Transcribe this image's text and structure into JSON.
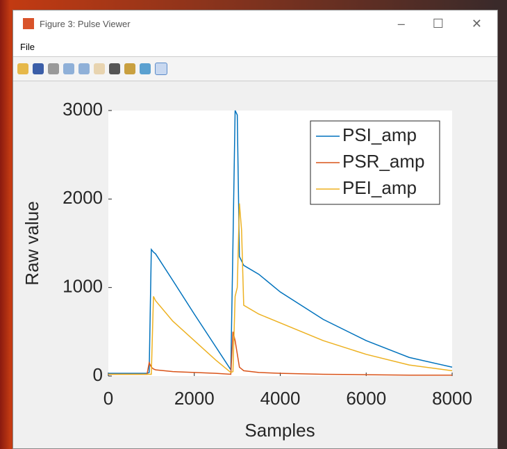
{
  "window": {
    "title": "Figure 3: Pulse Viewer",
    "menu": [
      "File"
    ]
  },
  "chart_data": {
    "type": "line",
    "xlabel": "Samples",
    "ylabel": "Raw value",
    "x": [
      0,
      900,
      950,
      1000,
      1050,
      1100,
      1500,
      2000,
      2500,
      2850,
      2900,
      2950,
      3000,
      3050,
      3100,
      3150,
      3500,
      4000,
      5000,
      6000,
      7000,
      8000
    ],
    "series": [
      {
        "name": "PSI_amp",
        "color": "#0072BD",
        "values": [
          30,
          30,
          40,
          1430,
          1400,
          1380,
          1080,
          700,
          330,
          70,
          1500,
          3000,
          2950,
          1350,
          1300,
          1250,
          1150,
          950,
          640,
          400,
          210,
          100
        ]
      },
      {
        "name": "PSR_amp",
        "color": "#D95319",
        "values": [
          20,
          20,
          150,
          100,
          80,
          70,
          50,
          40,
          30,
          20,
          500,
          400,
          250,
          100,
          80,
          60,
          40,
          30,
          20,
          15,
          10,
          10
        ]
      },
      {
        "name": "PEI_amp",
        "color": "#EDB120",
        "values": [
          20,
          20,
          20,
          20,
          900,
          850,
          620,
          400,
          180,
          40,
          50,
          900,
          1000,
          1950,
          1650,
          800,
          700,
          600,
          400,
          245,
          125,
          60
        ]
      }
    ],
    "xlim": [
      0,
      8000
    ],
    "xticks": [
      0,
      2000,
      4000,
      6000,
      8000
    ],
    "ylim": [
      0,
      3000
    ],
    "yticks": [
      0,
      1000,
      2000,
      3000
    ],
    "legend": "upper right"
  }
}
